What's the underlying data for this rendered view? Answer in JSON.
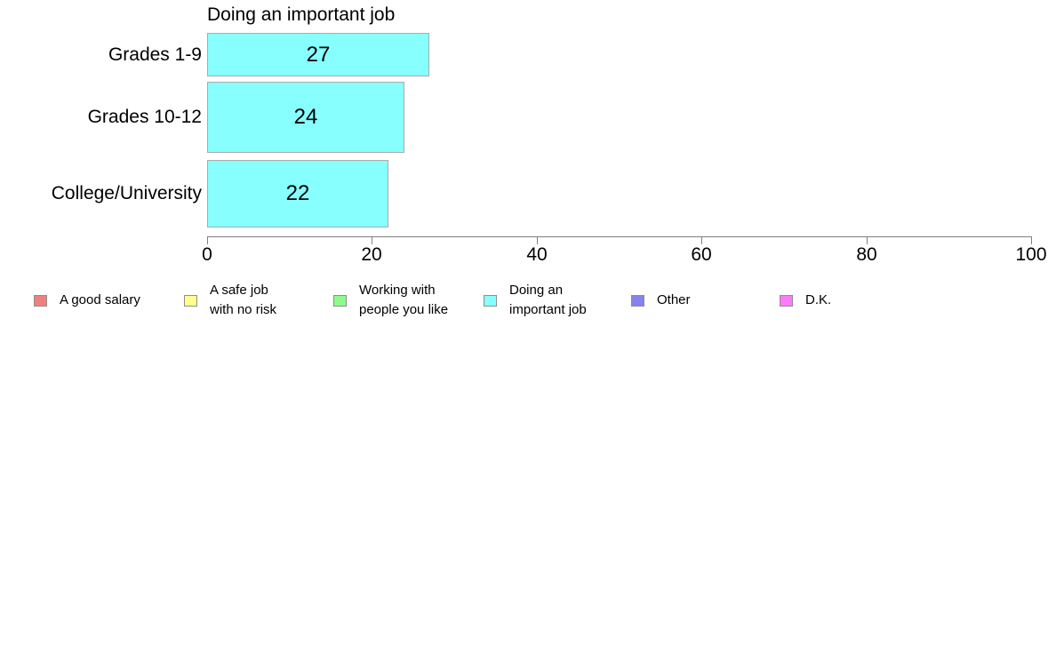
{
  "chart_data": {
    "type": "bar",
    "orientation": "horizontal",
    "title": "Doing an important job",
    "categories": [
      "Grades 1-9",
      "Grades 10-12",
      "College/University"
    ],
    "values": [
      27,
      24,
      22
    ],
    "series_name": "Doing an important job",
    "xlabel": "",
    "ylabel": "",
    "xlim": [
      0,
      100
    ],
    "x_ticks": [
      "0",
      "20",
      "40",
      "60",
      "80",
      "100"
    ],
    "grid": false,
    "legend_position": "bottom",
    "bar_fill_color": "#87FFFF",
    "bar_edge_color": "#ABABAB",
    "axis_color": "#808080",
    "text_color": "#000000",
    "legend": [
      {
        "label": "A good salary",
        "color": "#F08080"
      },
      {
        "label": "A safe job\nwith no risk",
        "color": "#FFFF8C"
      },
      {
        "label": "Working with\npeople you like",
        "color": "#8CFB8C"
      },
      {
        "label": "Doing an\nimportant job",
        "color": "#87FFFF"
      },
      {
        "label": "Other",
        "color": "#8484EC"
      },
      {
        "label": "D.K.",
        "color": "#FB7BFB"
      }
    ]
  }
}
